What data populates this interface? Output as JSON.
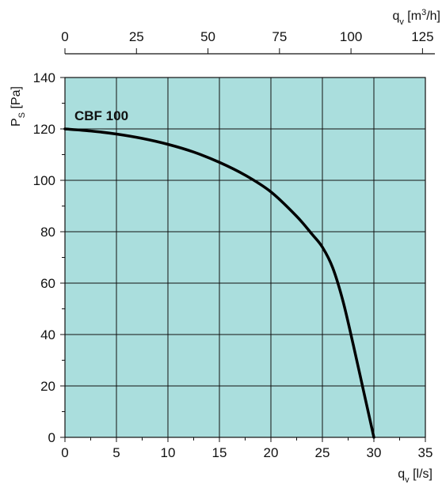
{
  "chart_data": {
    "type": "line",
    "colors": {
      "plot_background": "#aadedd",
      "grid": "#111111",
      "curve": "#000000"
    },
    "x_axis_bottom": {
      "label": "q",
      "label_sub": "v",
      "label_unit": " [l/s]",
      "range": [
        0,
        35
      ],
      "ticks": [
        "0",
        "5",
        "10",
        "15",
        "20",
        "25",
        "30",
        "35"
      ]
    },
    "x_axis_top": {
      "label": "q",
      "label_sub": "v",
      "label_unit_pre": " [m",
      "label_unit_sup": "3",
      "label_unit_post": "/h]",
      "range": [
        0,
        126
      ],
      "ticks": [
        "0",
        "25",
        "50",
        "75",
        "100",
        "125"
      ]
    },
    "y_axis": {
      "label": "P",
      "label_sub": "S",
      "label_unit": " [Pa]",
      "range": [
        0,
        140
      ],
      "ticks": [
        "0",
        "20",
        "40",
        "60",
        "80",
        "100",
        "120",
        "140"
      ]
    },
    "grid": true,
    "series": [
      {
        "name": "CBF 100",
        "x": [
          0,
          2.5,
          5,
          7.5,
          10,
          12.5,
          15,
          17.5,
          20,
          22.5,
          24,
          25,
          26,
          27,
          28,
          29,
          30
        ],
        "y": [
          120,
          119.2,
          118,
          116.3,
          114,
          111,
          107,
          102,
          95.5,
          86,
          79,
          74,
          66,
          53,
          36,
          18,
          0
        ]
      }
    ]
  }
}
